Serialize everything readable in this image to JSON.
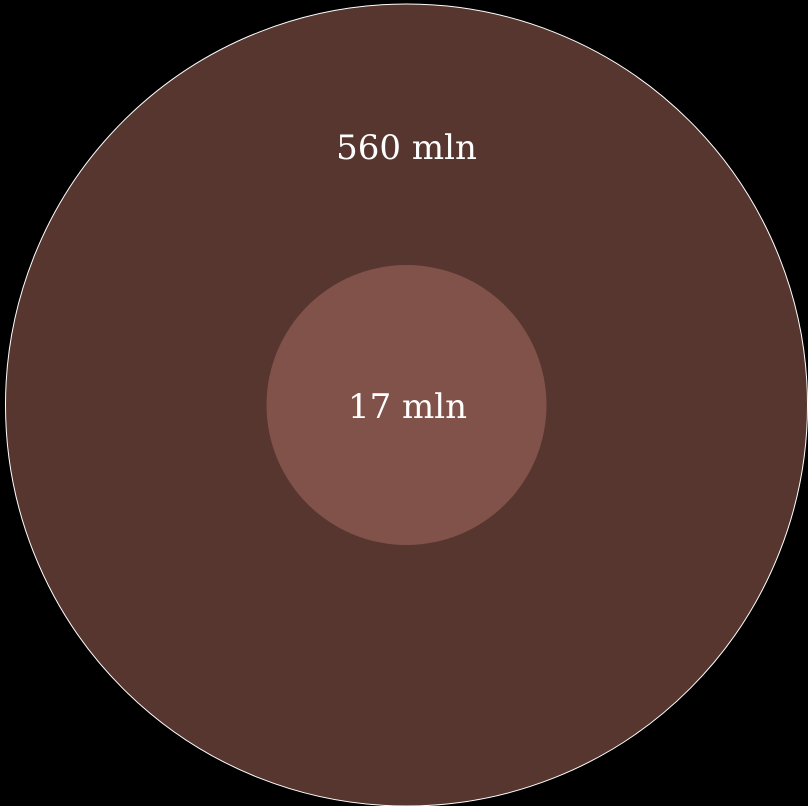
{
  "chart_data": {
    "type": "nested-bubble",
    "series": [
      {
        "label": "560 mln",
        "value": 560,
        "color": "#56362e",
        "stroke": "#ffffff"
      },
      {
        "label": "17 mln",
        "value": 17,
        "color": "#80524a"
      }
    ],
    "background": "#000000"
  }
}
